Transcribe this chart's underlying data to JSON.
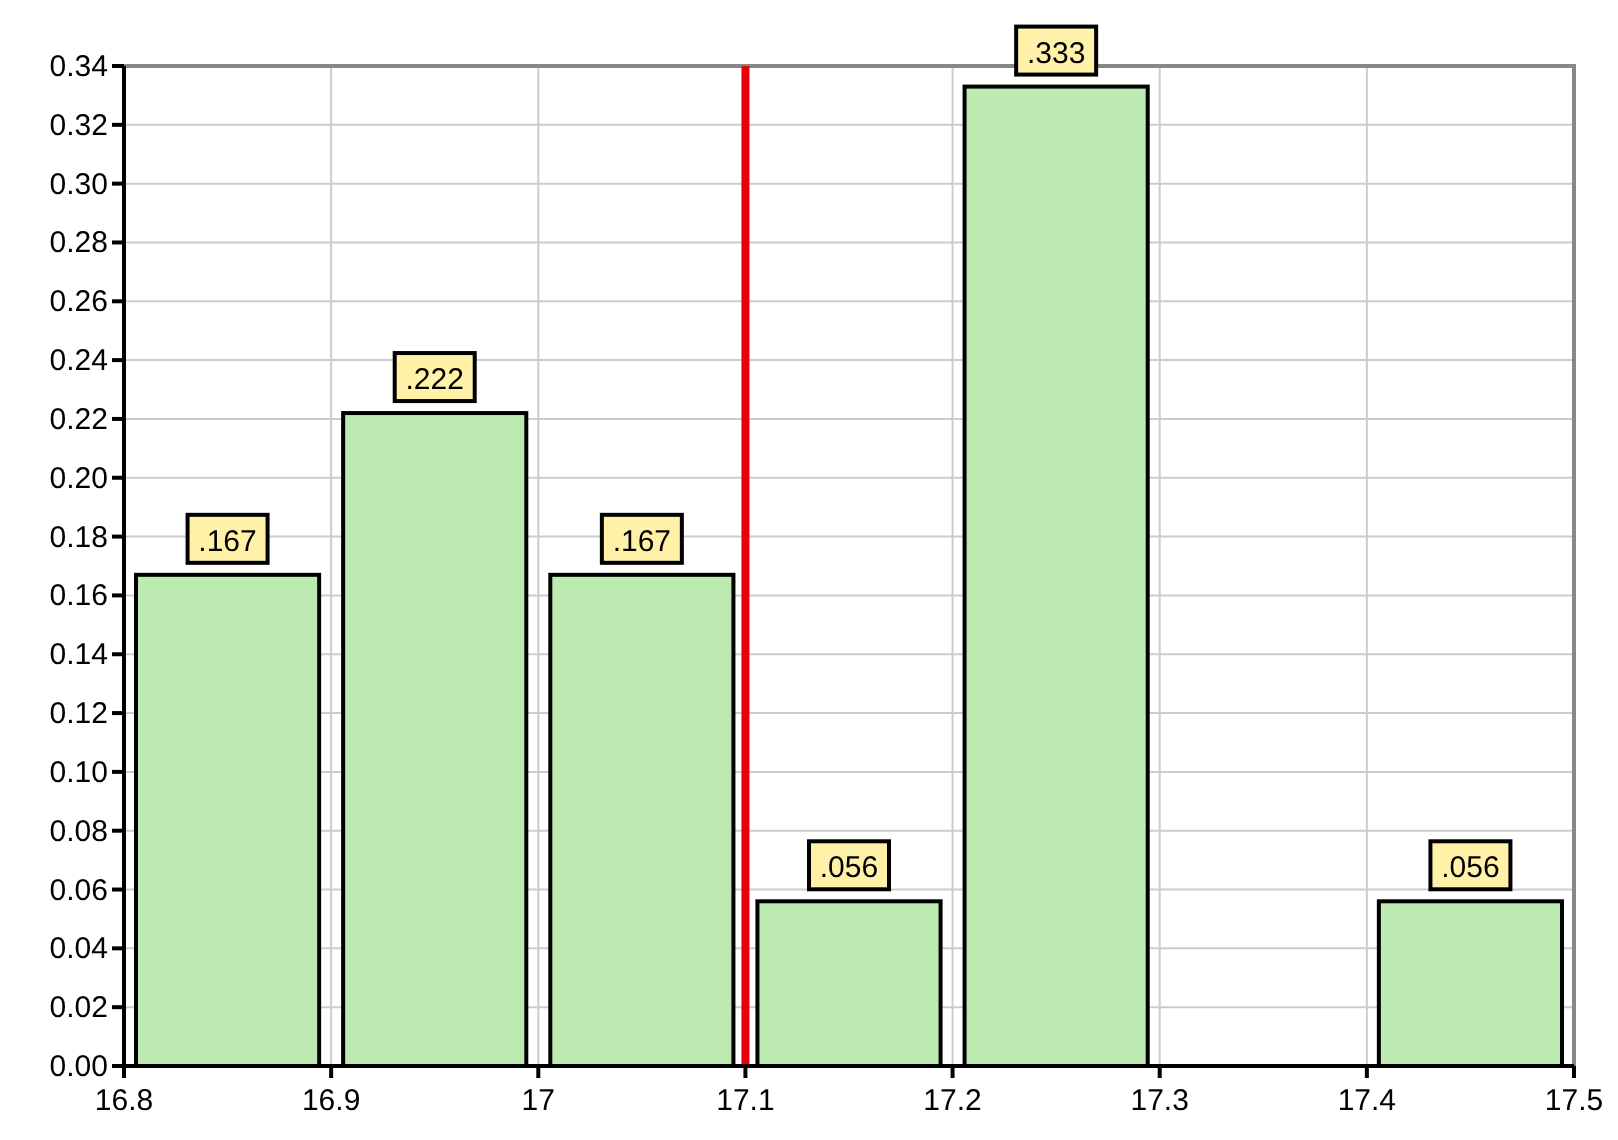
{
  "chart_data": {
    "type": "histogram",
    "bins": [
      16.8,
      16.9,
      17,
      17.1,
      17.2,
      17.3,
      17.4,
      17.5
    ],
    "values": [
      0.167,
      0.222,
      0.167,
      0.056,
      0.333,
      0,
      0.056
    ],
    "value_labels": [
      ".167",
      ".222",
      ".167",
      ".056",
      ".333",
      null,
      ".056"
    ],
    "color": "#bdeab0",
    "xlim": [
      16.8,
      17.5
    ],
    "xticks": [
      16.8,
      16.9,
      17,
      17.1,
      17.2,
      17.3,
      17.4,
      17.5
    ],
    "ylim": [
      0,
      0.34
    ],
    "yticks": [
      {
        "value": 0,
        "label": "0.00"
      },
      {
        "value": 0.02,
        "label": "0.02"
      },
      {
        "value": 0.04,
        "label": "0.04"
      },
      {
        "value": 0.06,
        "label": "0.06"
      },
      {
        "value": 0.08,
        "label": "0.08"
      },
      {
        "value": 0.1,
        "label": "0.10"
      },
      {
        "value": 0.12,
        "label": "0.12"
      },
      {
        "value": 0.14,
        "label": "0.14"
      },
      {
        "value": 0.16,
        "label": "0.16"
      },
      {
        "value": 0.18,
        "label": "0.18"
      },
      {
        "value": 0.2,
        "label": "0.20"
      },
      {
        "value": 0.22,
        "label": "0.22"
      },
      {
        "value": 0.24,
        "label": "0.24"
      },
      {
        "value": 0.26,
        "label": "0.26"
      },
      {
        "value": 0.28,
        "label": "0.28"
      },
      {
        "value": 0.3,
        "label": "0.30"
      },
      {
        "value": 0.32,
        "label": "0.32"
      },
      {
        "value": 0.34,
        "label": "0.34"
      }
    ],
    "grid": true,
    "ref_lines": [
      {
        "axis": "x",
        "value": 17.1,
        "color": "#e8000b"
      }
    ]
  }
}
